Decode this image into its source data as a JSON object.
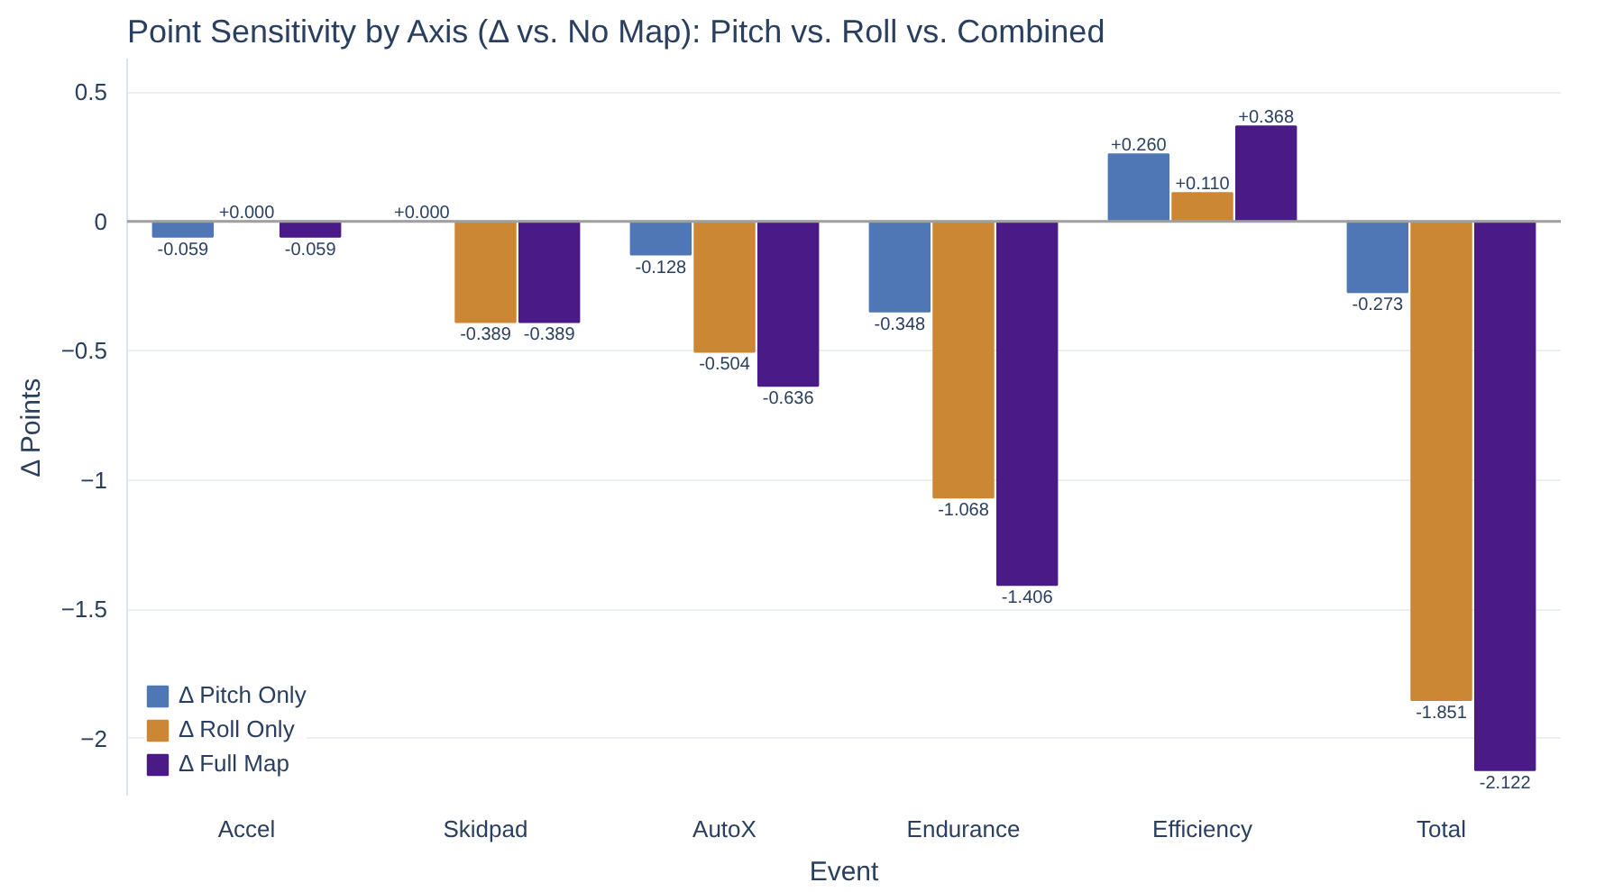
{
  "chart_data": {
    "type": "bar",
    "title": "Point Sensitivity by Axis (Δ vs. No Map): Pitch vs. Roll vs. Combined",
    "xlabel": "Event",
    "ylabel": "Δ Points",
    "categories": [
      "Accel",
      "Skidpad",
      "AutoX",
      "Endurance",
      "Efficiency",
      "Total"
    ],
    "series": [
      {
        "name": "Δ Pitch Only",
        "color": "#4f77b5",
        "values": [
          -0.059,
          0.0,
          -0.128,
          -0.348,
          0.26,
          -0.273
        ],
        "value_labels": [
          "-0.059",
          "+0.000",
          "-0.128",
          "-0.348",
          "+0.260",
          "-0.273"
        ]
      },
      {
        "name": "Δ Roll Only",
        "color": "#cc8734",
        "values": [
          0.0,
          -0.389,
          -0.504,
          -1.068,
          0.11,
          -1.851
        ],
        "value_labels": [
          "+0.000",
          "-0.389",
          "-0.504",
          "-1.068",
          "+0.110",
          "-1.851"
        ]
      },
      {
        "name": "Δ Full Map",
        "color": "#4a1a86",
        "values": [
          -0.059,
          -0.389,
          -0.636,
          -1.406,
          0.368,
          -2.122
        ],
        "value_labels": [
          "-0.059",
          "-0.389",
          "-0.636",
          "-1.406",
          "+0.368",
          "-2.122"
        ]
      }
    ],
    "ylim": [
      -2.22,
      0.63
    ],
    "yticks": [
      {
        "value": -2,
        "label": "−2"
      },
      {
        "value": -1.5,
        "label": "−1.5"
      },
      {
        "value": -1,
        "label": "−1"
      },
      {
        "value": -0.5,
        "label": "−0.5"
      },
      0,
      0.5
    ],
    "grid": "y",
    "legend": "bottom left"
  }
}
